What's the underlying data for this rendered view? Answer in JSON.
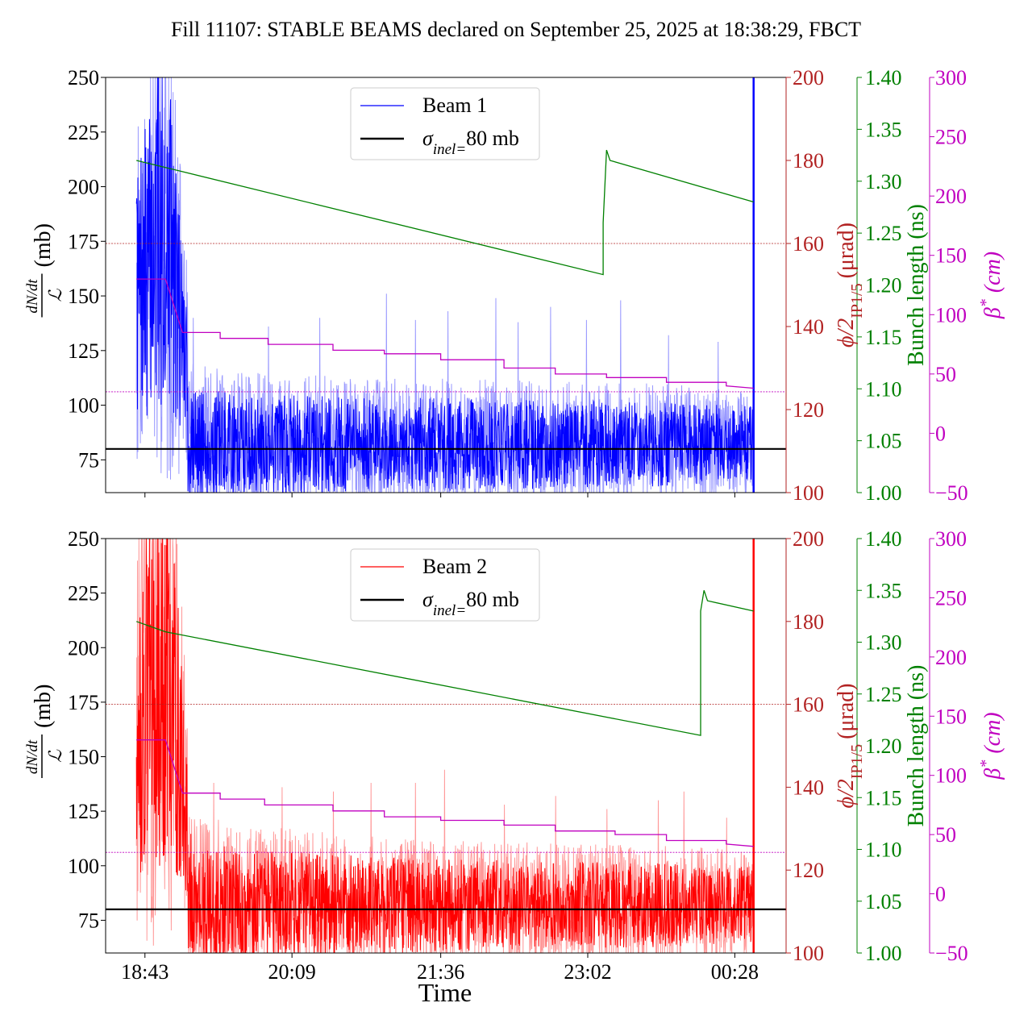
{
  "figure": {
    "title": "Fill 11107: STABLE BEAMS declared on September 25, 2025 at 18:38:29, FBCT",
    "xlabel": "Time"
  },
  "colors": {
    "beam1": "#0000ff",
    "beam1_light": "#9999ff",
    "beam2": "#ff0000",
    "beam2_light": "#ff9999",
    "sigma": "#000000",
    "crossing": "#b22222",
    "bunch": "#008000",
    "beta": "#c000c0"
  },
  "chart_data": [
    {
      "type": "line",
      "panel": "top",
      "legend": {
        "placement": "upper-center",
        "entries": [
          "Beam 1",
          "σinel=80 mb"
        ]
      },
      "x_ticks": [
        "18:43",
        "20:09",
        "21:36",
        "23:02",
        "00:28"
      ],
      "x_tick_minutes": [
        0,
        86,
        173,
        259,
        345
      ],
      "xlim_minutes": [
        -23,
        375
      ],
      "axes": {
        "left": {
          "label_num": "dN/dt",
          "label_den": "ℒ",
          "label_unit": "(mb)",
          "ylim": [
            60,
            250
          ],
          "ticks": [
            75,
            100,
            125,
            150,
            175,
            200,
            225,
            250
          ]
        },
        "crossing": {
          "label_main": "ϕ/2",
          "label_sub": "IP1/5",
          "label_unit": "(μrad)",
          "ylim": [
            100,
            200
          ],
          "ticks": [
            100,
            120,
            140,
            160,
            180,
            200
          ]
        },
        "bunch": {
          "label": "Bunch length (ns)",
          "ylim": [
            1.0,
            1.4
          ],
          "ticks": [
            "1.00",
            "1.05",
            "1.10",
            "1.15",
            "1.20",
            "1.25",
            "1.30",
            "1.35",
            "1.40"
          ]
        },
        "beta": {
          "label_main": "β",
          "label_sup": "*",
          "label_unit": "(cm)",
          "ylim": [
            -50,
            300
          ],
          "ticks": [
            "−50",
            "0",
            "50",
            "100",
            "150",
            "200",
            "250",
            "300"
          ]
        }
      },
      "series": [
        {
          "name": "Beam 1",
          "axis": "left",
          "start_min": -5,
          "end_min": 356,
          "envelope": [
            [
              -5,
              185
            ],
            [
              0,
              210
            ],
            [
              5,
              230
            ],
            [
              10,
              250
            ],
            [
              15,
              225
            ],
            [
              20,
              180
            ],
            [
              25,
              130
            ],
            [
              30,
              118
            ],
            [
              60,
              112
            ],
            [
              120,
              110
            ],
            [
              180,
              108
            ],
            [
              240,
              106
            ],
            [
              300,
              104
            ],
            [
              350,
              100
            ]
          ],
          "spikes": [
            [
              28,
              140
            ],
            [
              72,
              136
            ],
            [
              102,
              140
            ],
            [
              141,
              151
            ],
            [
              158,
              139
            ],
            [
              177,
              143
            ],
            [
              205,
              149
            ],
            [
              218,
              138
            ],
            [
              237,
              145
            ],
            [
              258,
              139
            ],
            [
              278,
              148
            ],
            [
              306,
              132
            ],
            [
              335,
              129
            ]
          ],
          "final_spike": [
            356,
            250
          ]
        },
        {
          "name": "σinel=80 mb",
          "axis": "left",
          "value": 80
        },
        {
          "name": "crossing reference",
          "axis": "crossing",
          "value": 160
        },
        {
          "name": "bunch length",
          "axis": "bunch",
          "points": [
            [
              -5,
              1.32
            ],
            [
              20,
              1.31
            ],
            [
              268,
              1.21
            ],
            [
              268,
              1.26
            ],
            [
              270,
              1.33
            ],
            [
              272,
              1.32
            ],
            [
              356,
              1.28
            ]
          ]
        },
        {
          "name": "beta* steps",
          "axis": "beta",
          "points": [
            [
              -5,
              130
            ],
            [
              12,
              130
            ],
            [
              22,
              85
            ],
            [
              44,
              85
            ],
            [
              44,
              80
            ],
            [
              72,
              80
            ],
            [
              72,
              75
            ],
            [
              110,
              75
            ],
            [
              110,
              70
            ],
            [
              140,
              70
            ],
            [
              140,
              67
            ],
            [
              173,
              67
            ],
            [
              173,
              62
            ],
            [
              210,
              62
            ],
            [
              210,
              55
            ],
            [
              240,
              55
            ],
            [
              240,
              50
            ],
            [
              270,
              50
            ],
            [
              270,
              47
            ],
            [
              305,
              47
            ],
            [
              305,
              43
            ],
            [
              340,
              43
            ],
            [
              340,
              40
            ],
            [
              356,
              38
            ]
          ]
        },
        {
          "name": "beta reference",
          "axis": "beta",
          "value": 35
        }
      ]
    },
    {
      "type": "line",
      "panel": "bottom",
      "legend": {
        "placement": "upper-center",
        "entries": [
          "Beam 2",
          "σinel=80 mb"
        ]
      },
      "x_ticks": [
        "18:43",
        "20:09",
        "21:36",
        "23:02",
        "00:28"
      ],
      "x_tick_minutes": [
        0,
        86,
        173,
        259,
        345
      ],
      "xlim_minutes": [
        -23,
        375
      ],
      "axes": {
        "left": {
          "label_num": "dN/dt",
          "label_den": "ℒ",
          "label_unit": "(mb)",
          "ylim": [
            60,
            250
          ],
          "ticks": [
            75,
            100,
            125,
            150,
            175,
            200,
            225,
            250
          ]
        },
        "crossing": {
          "label_main": "ϕ/2",
          "label_sub": "IP1/5",
          "label_unit": "(μrad)",
          "ylim": [
            100,
            200
          ],
          "ticks": [
            100,
            120,
            140,
            160,
            180,
            200
          ]
        },
        "bunch": {
          "label": "Bunch length (ns)",
          "ylim": [
            1.0,
            1.4
          ],
          "ticks": [
            "1.00",
            "1.05",
            "1.10",
            "1.15",
            "1.20",
            "1.25",
            "1.30",
            "1.35",
            "1.40"
          ]
        },
        "beta": {
          "label_main": "β",
          "label_sup": "*",
          "label_unit": "(cm)",
          "ylim": [
            -50,
            300
          ],
          "ticks": [
            "−50",
            "0",
            "50",
            "100",
            "150",
            "200",
            "250",
            "300"
          ]
        }
      },
      "series": [
        {
          "name": "Beam 2",
          "axis": "left",
          "start_min": -5,
          "end_min": 356,
          "envelope": [
            [
              -5,
              200
            ],
            [
              0,
              240
            ],
            [
              5,
              250
            ],
            [
              10,
              250
            ],
            [
              15,
              240
            ],
            [
              20,
              200
            ],
            [
              25,
              140
            ],
            [
              30,
              125
            ],
            [
              60,
              118
            ],
            [
              120,
              112
            ],
            [
              180,
              108
            ],
            [
              240,
              105
            ],
            [
              300,
              104
            ],
            [
              350,
              100
            ]
          ],
          "spikes": [
            [
              40,
              138
            ],
            [
              80,
              136
            ],
            [
              110,
              134
            ],
            [
              132,
              138
            ],
            [
              158,
              138
            ],
            [
              175,
              144
            ],
            [
              210,
              128
            ],
            [
              240,
              132
            ],
            [
              270,
              126
            ],
            [
              300,
              130
            ],
            [
              315,
              134
            ],
            [
              340,
              122
            ]
          ],
          "final_spike": [
            356,
            250
          ]
        },
        {
          "name": "σinel=80 mb",
          "axis": "left",
          "value": 80
        },
        {
          "name": "crossing reference",
          "axis": "crossing",
          "value": 160
        },
        {
          "name": "bunch length",
          "axis": "bunch",
          "points": [
            [
              -5,
              1.32
            ],
            [
              12,
              1.31
            ],
            [
              325,
              1.21
            ],
            [
              325,
              1.33
            ],
            [
              327,
              1.35
            ],
            [
              329,
              1.34
            ],
            [
              356,
              1.33
            ]
          ]
        },
        {
          "name": "beta* steps",
          "axis": "beta",
          "points": [
            [
              -5,
              130
            ],
            [
              12,
              130
            ],
            [
              22,
              85
            ],
            [
              44,
              85
            ],
            [
              44,
              80
            ],
            [
              70,
              80
            ],
            [
              70,
              75
            ],
            [
              110,
              75
            ],
            [
              110,
              70
            ],
            [
              140,
              70
            ],
            [
              140,
              65
            ],
            [
              173,
              65
            ],
            [
              173,
              62
            ],
            [
              210,
              62
            ],
            [
              210,
              58
            ],
            [
              240,
              58
            ],
            [
              240,
              53
            ],
            [
              275,
              53
            ],
            [
              275,
              50
            ],
            [
              305,
              50
            ],
            [
              305,
              45
            ],
            [
              340,
              45
            ],
            [
              340,
              42
            ],
            [
              356,
              40
            ]
          ]
        },
        {
          "name": "beta reference",
          "axis": "beta",
          "value": 35
        }
      ]
    }
  ]
}
